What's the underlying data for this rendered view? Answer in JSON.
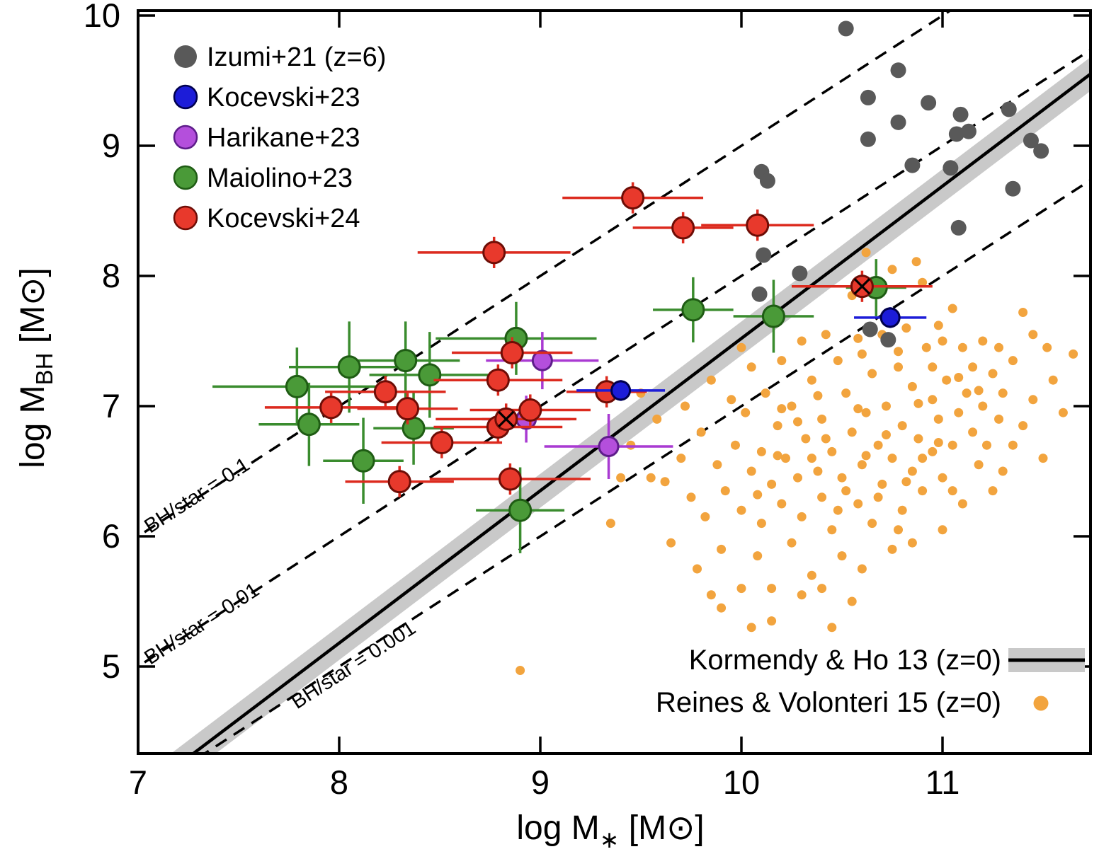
{
  "chart_data": {
    "type": "scatter",
    "title": "",
    "xlabel": {
      "main": "log M",
      "sub": "∗",
      "unit": "[M⊙]"
    },
    "ylabel": {
      "main": "log M",
      "sub": "BH",
      "unit": "[M⊙]"
    },
    "xlim": [
      7,
      11.74
    ],
    "ylim": [
      4.33,
      10.04
    ],
    "xticks": [
      "7",
      "8",
      "9",
      "10",
      "11"
    ],
    "yticks": [
      "5",
      "6",
      "7",
      "8",
      "9",
      "10"
    ],
    "grid": false,
    "reference_line": {
      "label": "Kormendy & Ho 13 (z=0)",
      "slope": 1.17,
      "anchor_x": 11,
      "anchor_y": 8.69,
      "band_dex": 0.13,
      "color": "#000000",
      "band_color": "#c9c9c9"
    },
    "ratio_lines": [
      {
        "label": "BH/star = 0.1",
        "offset": -1,
        "label_x": 7.06,
        "label_y": 6.02
      },
      {
        "label": "BH/star = 0.01",
        "offset": -2,
        "label_x": 7.06,
        "label_y": 5.01
      },
      {
        "label": "BH/star = 0.001",
        "offset": -3,
        "label_x": 7.79,
        "label_y": 4.67
      }
    ],
    "series": [
      {
        "id": "izumi21",
        "name": "Izumi+21 (z=6)",
        "color": "#595959",
        "edge": "none",
        "r": 11,
        "points": [
          [
            10.52,
            9.9
          ],
          [
            10.78,
            9.58
          ],
          [
            10.63,
            9.37
          ],
          [
            10.93,
            9.33
          ],
          [
            11.09,
            9.24
          ],
          [
            10.78,
            9.18
          ],
          [
            11.13,
            9.11
          ],
          [
            11.07,
            9.09
          ],
          [
            10.63,
            9.05
          ],
          [
            11.33,
            9.28
          ],
          [
            11.44,
            9.04
          ],
          [
            11.49,
            8.96
          ],
          [
            10.85,
            8.85
          ],
          [
            11.04,
            8.83
          ],
          [
            11.35,
            8.67
          ],
          [
            11.08,
            8.37
          ],
          [
            10.1,
            8.8
          ],
          [
            10.13,
            8.73
          ],
          [
            10.11,
            8.16
          ],
          [
            10.29,
            8.02
          ],
          [
            10.09,
            7.86
          ],
          [
            10.64,
            7.59
          ],
          [
            10.73,
            7.51
          ]
        ]
      },
      {
        "id": "kocevski23",
        "name": "Kocevski+23",
        "color": "#1c1cd8",
        "edge": "#00004d",
        "r": 13,
        "err_color": "#1c1cd8",
        "points": [
          {
            "x": 9.4,
            "y": 7.12,
            "xe": 0.22,
            "ye": 0.08
          },
          {
            "x": 10.74,
            "y": 7.68,
            "xe": 0.18,
            "ye": 0.08
          }
        ]
      },
      {
        "id": "harikane23",
        "name": "Harikane+23",
        "color": "#b44fdc",
        "edge": "#5e1d8a",
        "r": 13.5,
        "err_color": "#a93ad2",
        "points": [
          {
            "x": 9.01,
            "y": 7.35,
            "xe": 0.28,
            "ye": 0.22
          },
          {
            "x": 8.93,
            "y": 6.9,
            "xe": 0.22,
            "ye": 0.18
          },
          {
            "x": 9.34,
            "y": 6.69,
            "xe": 0.32,
            "ye": 0.25
          }
        ]
      },
      {
        "id": "maiolino23",
        "name": "Maiolino+23",
        "color": "#4a9a38",
        "edge": "#1f5c14",
        "r": 15,
        "err_color": "#3a8c2e",
        "points": [
          {
            "x": 7.79,
            "y": 7.15,
            "xe": 0.42,
            "ye": 0.3
          },
          {
            "x": 7.85,
            "y": 6.86,
            "xe": 0.25,
            "ye": 0.32
          },
          {
            "x": 8.05,
            "y": 7.3,
            "xe": 0.3,
            "ye": 0.35
          },
          {
            "x": 8.12,
            "y": 6.58,
            "xe": 0.2,
            "ye": 0.33
          },
          {
            "x": 8.33,
            "y": 7.35,
            "xe": 0.27,
            "ye": 0.3
          },
          {
            "x": 8.37,
            "y": 6.83,
            "xe": 0.2,
            "ye": 0.28
          },
          {
            "x": 8.45,
            "y": 7.24,
            "xe": 0.3,
            "ye": 0.33
          },
          {
            "x": 8.88,
            "y": 7.52,
            "xe": 0.4,
            "ye": 0.28
          },
          {
            "x": 8.9,
            "y": 6.2,
            "xe": 0.22,
            "ye": 0.33
          },
          {
            "x": 9.76,
            "y": 7.74,
            "xe": 0.2,
            "ye": 0.25
          },
          {
            "x": 10.16,
            "y": 7.69,
            "xe": 0.2,
            "ye": 0.28
          },
          {
            "x": 10.67,
            "y": 7.91,
            "xe": 0.15,
            "ye": 0.22
          }
        ]
      },
      {
        "id": "kocevski24",
        "name": "Kocevski+24",
        "color": "#e8392c",
        "edge": "#6e0d06",
        "r": 15,
        "err_color": "#dc2a1e",
        "points": [
          {
            "x": 9.46,
            "y": 8.6,
            "xe": 0.35,
            "ye": 0.12
          },
          {
            "x": 9.71,
            "y": 8.37,
            "xe": 0.25,
            "ye": 0.12
          },
          {
            "x": 10.08,
            "y": 8.39,
            "xe": 0.28,
            "ye": 0.12
          },
          {
            "x": 8.77,
            "y": 8.18,
            "xe": 0.38,
            "ye": 0.12
          },
          {
            "x": 8.86,
            "y": 7.41,
            "xe": 0.3,
            "ye": 0.12
          },
          {
            "x": 8.79,
            "y": 7.2,
            "xe": 0.32,
            "ye": 0.12
          },
          {
            "x": 8.23,
            "y": 7.11,
            "xe": 0.3,
            "ye": 0.12
          },
          {
            "x": 7.96,
            "y": 6.99,
            "xe": 0.33,
            "ye": 0.12
          },
          {
            "x": 8.34,
            "y": 6.98,
            "xe": 0.25,
            "ye": 0.12
          },
          {
            "x": 8.79,
            "y": 6.84,
            "xe": 0.32,
            "ye": 0.12
          },
          {
            "x": 8.51,
            "y": 6.72,
            "xe": 0.3,
            "ye": 0.12
          },
          {
            "x": 8.3,
            "y": 6.42,
            "xe": 0.27,
            "ye": 0.12
          },
          {
            "x": 8.85,
            "y": 6.44,
            "xe": 0.4,
            "ye": 0.12
          },
          {
            "x": 8.95,
            "y": 6.97,
            "xe": 0.3,
            "ye": 0.12
          },
          {
            "x": 9.33,
            "y": 7.11,
            "xe": 0.2,
            "ye": 0.12
          },
          {
            "x": 8.83,
            "y": 6.9,
            "xe": 0.35,
            "ye": 0.12,
            "crossed": true
          },
          {
            "x": 10.6,
            "y": 7.92,
            "xe": 0.35,
            "ye": 0.12,
            "crossed": true
          }
        ]
      },
      {
        "id": "reines15",
        "name": "Reines & Volonteri 15 (z=0)",
        "color": "#f2a43e",
        "edge": "none",
        "r": 6.5,
        "points": [
          [
            9.35,
            6.1
          ],
          [
            9.4,
            6.45
          ],
          [
            9.45,
            6.7
          ],
          [
            9.5,
            7.1
          ],
          [
            9.55,
            6.45
          ],
          [
            9.58,
            6.9
          ],
          [
            9.62,
            6.42
          ],
          [
            9.65,
            5.95
          ],
          [
            9.7,
            6.6
          ],
          [
            9.72,
            7.0
          ],
          [
            9.75,
            6.3
          ],
          [
            9.78,
            5.75
          ],
          [
            9.8,
            6.8
          ],
          [
            9.82,
            6.15
          ],
          [
            9.85,
            7.2
          ],
          [
            9.88,
            6.55
          ],
          [
            9.9,
            5.9
          ],
          [
            9.9,
            5.45
          ],
          [
            9.92,
            6.35
          ],
          [
            9.95,
            7.05
          ],
          [
            9.97,
            6.7
          ],
          [
            10.0,
            6.2
          ],
          [
            10.0,
            5.6
          ],
          [
            10.0,
            7.45
          ],
          [
            10.02,
            6.95
          ],
          [
            10.05,
            6.5
          ],
          [
            10.05,
            7.3
          ],
          [
            10.05,
            5.3
          ],
          [
            10.08,
            5.85
          ],
          [
            10.08,
            6.32
          ],
          [
            10.1,
            6.65
          ],
          [
            10.1,
            6.1
          ],
          [
            10.12,
            7.1
          ],
          [
            10.15,
            6.4
          ],
          [
            10.15,
            5.35
          ],
          [
            10.18,
            6.85
          ],
          [
            10.18,
            6.62
          ],
          [
            10.2,
            6.25
          ],
          [
            10.2,
            7.35
          ],
          [
            10.2,
            6.98
          ],
          [
            10.22,
            6.6
          ],
          [
            10.25,
            5.95
          ],
          [
            10.25,
            7.0
          ],
          [
            10.28,
            6.45
          ],
          [
            10.28,
            6.88
          ],
          [
            10.3,
            7.5
          ],
          [
            10.3,
            6.15
          ],
          [
            10.3,
            5.55
          ],
          [
            10.32,
            6.75
          ],
          [
            10.35,
            5.7
          ],
          [
            10.35,
            7.2
          ],
          [
            10.35,
            6.6
          ],
          [
            10.38,
            6.5
          ],
          [
            10.38,
            7.08
          ],
          [
            10.4,
            6.9
          ],
          [
            10.4,
            6.3
          ],
          [
            10.4,
            5.6
          ],
          [
            10.42,
            7.55
          ],
          [
            10.42,
            6.75
          ],
          [
            10.45,
            6.05
          ],
          [
            10.45,
            6.65
          ],
          [
            10.48,
            7.35
          ],
          [
            10.48,
            6.2
          ],
          [
            10.5,
            6.45
          ],
          [
            10.5,
            5.85
          ],
          [
            10.52,
            7.1
          ],
          [
            10.52,
            6.35
          ],
          [
            10.55,
            6.8
          ],
          [
            10.55,
            7.85
          ],
          [
            10.55,
            5.5
          ],
          [
            10.58,
            6.25
          ],
          [
            10.58,
            6.98
          ],
          [
            10.58,
            7.52
          ],
          [
            10.6,
            6.55
          ],
          [
            10.6,
            7.4
          ],
          [
            10.6,
            5.75
          ],
          [
            10.62,
            8.18
          ],
          [
            10.62,
            6.95
          ],
          [
            10.62,
            6.62
          ],
          [
            10.65,
            6.1
          ],
          [
            10.65,
            7.25
          ],
          [
            10.68,
            6.7
          ],
          [
            10.68,
            6.3
          ],
          [
            10.7,
            7.55
          ],
          [
            10.7,
            6.4
          ],
          [
            10.72,
            7.0
          ],
          [
            10.72,
            6.78
          ],
          [
            10.75,
            8.05
          ],
          [
            10.75,
            6.6
          ],
          [
            10.75,
            5.9
          ],
          [
            10.78,
            7.3
          ],
          [
            10.78,
            6.05
          ],
          [
            10.78,
            7.42
          ],
          [
            10.8,
            6.2
          ],
          [
            10.8,
            6.85
          ],
          [
            10.82,
            7.6
          ],
          [
            10.82,
            6.42
          ],
          [
            10.85,
            6.5
          ],
          [
            10.85,
            7.15
          ],
          [
            10.85,
            5.95
          ],
          [
            10.87,
            8.11
          ],
          [
            10.88,
            6.75
          ],
          [
            10.88,
            7.02
          ],
          [
            10.9,
            7.95
          ],
          [
            10.9,
            6.35
          ],
          [
            10.9,
            6.6
          ],
          [
            10.92,
            7.45
          ],
          [
            10.95,
            6.65
          ],
          [
            10.95,
            7.05
          ],
          [
            10.95,
            7.3
          ],
          [
            10.98,
            6.9
          ],
          [
            10.98,
            6.72
          ],
          [
            10.98,
            7.62
          ],
          [
            11.0,
            7.5
          ],
          [
            11.0,
            6.45
          ],
          [
            11.0,
            6.05
          ],
          [
            11.02,
            7.2
          ],
          [
            11.05,
            6.7
          ],
          [
            11.05,
            7.75
          ],
          [
            11.05,
            6.35
          ],
          [
            11.08,
            6.95
          ],
          [
            11.08,
            7.22
          ],
          [
            11.1,
            7.45
          ],
          [
            11.1,
            6.25
          ],
          [
            11.12,
            7.1
          ],
          [
            11.15,
            6.8
          ],
          [
            11.15,
            7.3
          ],
          [
            11.18,
            6.55
          ],
          [
            11.18,
            7.12
          ],
          [
            11.2,
            7.0
          ],
          [
            11.2,
            7.5
          ],
          [
            11.22,
            6.7
          ],
          [
            11.25,
            7.25
          ],
          [
            11.25,
            6.35
          ],
          [
            11.28,
            6.9
          ],
          [
            11.28,
            7.45
          ],
          [
            11.3,
            7.1
          ],
          [
            11.3,
            6.5
          ],
          [
            11.35,
            7.35
          ],
          [
            11.35,
            6.7
          ],
          [
            11.4,
            7.72
          ],
          [
            11.4,
            6.85
          ],
          [
            11.45,
            7.55
          ],
          [
            11.45,
            7.05
          ],
          [
            11.5,
            6.6
          ],
          [
            11.52,
            7.45
          ],
          [
            11.55,
            7.2
          ],
          [
            11.6,
            6.95
          ],
          [
            11.65,
            7.4
          ],
          [
            8.9,
            4.97
          ],
          [
            10.45,
            5.3
          ],
          [
            10.15,
            5.6
          ],
          [
            9.85,
            5.55
          ]
        ]
      }
    ]
  },
  "legend_main": {
    "items": [
      {
        "label": "Izumi+21 (z=6)",
        "series": "izumi21"
      },
      {
        "label": "Kocevski+23",
        "series": "kocevski23"
      },
      {
        "label": "Harikane+23",
        "series": "harikane23"
      },
      {
        "label": "Maiolino+23",
        "series": "maiolino23"
      },
      {
        "label": "Kocevski+24",
        "series": "kocevski24"
      }
    ]
  },
  "legend_reference": {
    "items": [
      {
        "label": "Kormendy & Ho 13 (z=0)",
        "type": "line-band"
      },
      {
        "label": "Reines & Volonteri 15 (z=0)",
        "type": "dot",
        "series": "reines15"
      }
    ]
  }
}
